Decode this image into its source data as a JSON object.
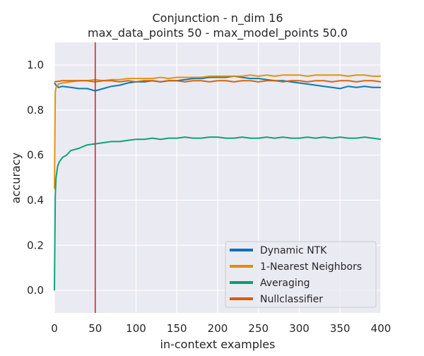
{
  "figure": {
    "title_line1": "Conjunction - n_dim 16",
    "title_line2": "max_data_points 50 - max_model_points 50.0"
  },
  "chart_data": {
    "type": "line",
    "title": "Conjunction - n_dim 16\nmax_data_points 50 - max_model_points 50.0",
    "xlabel": "in-context examples",
    "ylabel": "accuracy",
    "xlim": [
      0,
      400
    ],
    "ylim": [
      -0.1,
      1.1
    ],
    "xticks": [
      0,
      50,
      100,
      150,
      200,
      250,
      300,
      350,
      400
    ],
    "yticks": [
      0.0,
      0.2,
      0.4,
      0.6,
      0.8,
      1.0
    ],
    "xtick_labels": [
      "0",
      "50",
      "100",
      "150",
      "200",
      "250",
      "300",
      "350",
      "400"
    ],
    "ytick_labels": [
      "0.0",
      "0.2",
      "0.4",
      "0.6",
      "0.8",
      "1.0"
    ],
    "grid": true,
    "legend_position": "lower-right",
    "vline": {
      "x": 50,
      "color": "#d62728"
    },
    "series": [
      {
        "name": "Dynamic NTK",
        "color": "#0173b2",
        "x": [
          0,
          2,
          5,
          10,
          20,
          30,
          40,
          50,
          60,
          70,
          80,
          90,
          100,
          110,
          120,
          130,
          140,
          150,
          160,
          170,
          180,
          190,
          200,
          210,
          220,
          230,
          240,
          250,
          260,
          270,
          280,
          290,
          300,
          310,
          320,
          330,
          340,
          350,
          360,
          370,
          380,
          390,
          400
        ],
        "values": [
          0.92,
          0.91,
          0.9,
          0.905,
          0.9,
          0.895,
          0.895,
          0.885,
          0.895,
          0.905,
          0.91,
          0.92,
          0.925,
          0.925,
          0.93,
          0.925,
          0.93,
          0.93,
          0.935,
          0.94,
          0.94,
          0.945,
          0.945,
          0.945,
          0.95,
          0.945,
          0.94,
          0.94,
          0.935,
          0.93,
          0.93,
          0.925,
          0.92,
          0.915,
          0.91,
          0.905,
          0.9,
          0.895,
          0.905,
          0.9,
          0.905,
          0.9,
          0.9
        ]
      },
      {
        "name": "1-Nearest Neighbors",
        "color": "#de8f05",
        "x": [
          0,
          1,
          2,
          5,
          10,
          20,
          30,
          40,
          50,
          60,
          70,
          80,
          90,
          100,
          110,
          120,
          130,
          140,
          150,
          160,
          170,
          180,
          190,
          200,
          210,
          220,
          230,
          240,
          250,
          260,
          270,
          280,
          290,
          300,
          310,
          320,
          330,
          340,
          350,
          360,
          370,
          380,
          390,
          400
        ],
        "values": [
          0.45,
          0.88,
          0.9,
          0.915,
          0.92,
          0.925,
          0.93,
          0.93,
          0.935,
          0.93,
          0.935,
          0.935,
          0.94,
          0.94,
          0.94,
          0.94,
          0.945,
          0.94,
          0.945,
          0.945,
          0.945,
          0.945,
          0.95,
          0.95,
          0.95,
          0.95,
          0.95,
          0.955,
          0.95,
          0.955,
          0.95,
          0.955,
          0.955,
          0.955,
          0.95,
          0.955,
          0.955,
          0.955,
          0.955,
          0.95,
          0.955,
          0.955,
          0.95,
          0.95
        ]
      },
      {
        "name": "Averaging",
        "color": "#029e73",
        "x": [
          0,
          1,
          2,
          4,
          6,
          10,
          15,
          20,
          30,
          40,
          50,
          60,
          70,
          80,
          90,
          100,
          110,
          120,
          130,
          140,
          150,
          160,
          170,
          180,
          190,
          200,
          210,
          220,
          230,
          240,
          250,
          260,
          270,
          280,
          290,
          300,
          310,
          320,
          330,
          340,
          350,
          360,
          370,
          380,
          390,
          400
        ],
        "values": [
          0.0,
          0.42,
          0.5,
          0.55,
          0.57,
          0.59,
          0.6,
          0.62,
          0.63,
          0.645,
          0.65,
          0.655,
          0.66,
          0.66,
          0.665,
          0.67,
          0.67,
          0.675,
          0.67,
          0.675,
          0.675,
          0.68,
          0.675,
          0.675,
          0.68,
          0.68,
          0.675,
          0.675,
          0.68,
          0.675,
          0.675,
          0.68,
          0.675,
          0.68,
          0.675,
          0.675,
          0.68,
          0.675,
          0.68,
          0.675,
          0.68,
          0.675,
          0.675,
          0.68,
          0.675,
          0.67
        ]
      },
      {
        "name": "Nullclassifier",
        "color": "#d55e00",
        "x": [
          0,
          10,
          20,
          30,
          40,
          50,
          60,
          70,
          80,
          90,
          100,
          110,
          120,
          130,
          140,
          150,
          160,
          170,
          180,
          190,
          200,
          210,
          220,
          230,
          240,
          250,
          260,
          270,
          280,
          290,
          300,
          310,
          320,
          330,
          340,
          350,
          360,
          370,
          380,
          390,
          400
        ],
        "values": [
          0.925,
          0.93,
          0.93,
          0.93,
          0.93,
          0.925,
          0.93,
          0.93,
          0.925,
          0.93,
          0.925,
          0.93,
          0.93,
          0.925,
          0.93,
          0.93,
          0.925,
          0.93,
          0.93,
          0.925,
          0.93,
          0.93,
          0.925,
          0.93,
          0.93,
          0.925,
          0.93,
          0.93,
          0.925,
          0.93,
          0.93,
          0.925,
          0.93,
          0.93,
          0.925,
          0.93,
          0.93,
          0.925,
          0.93,
          0.93,
          0.925
        ]
      }
    ]
  },
  "legend": {
    "items": [
      {
        "label": "Dynamic NTK",
        "color": "#0173b2"
      },
      {
        "label": "1-Nearest Neighbors",
        "color": "#de8f05"
      },
      {
        "label": "Averaging",
        "color": "#029e73"
      },
      {
        "label": "Nullclassifier",
        "color": "#d55e00"
      }
    ]
  },
  "style": {
    "plot_background": "#eaeaf2",
    "grid_color": "#ffffff"
  }
}
